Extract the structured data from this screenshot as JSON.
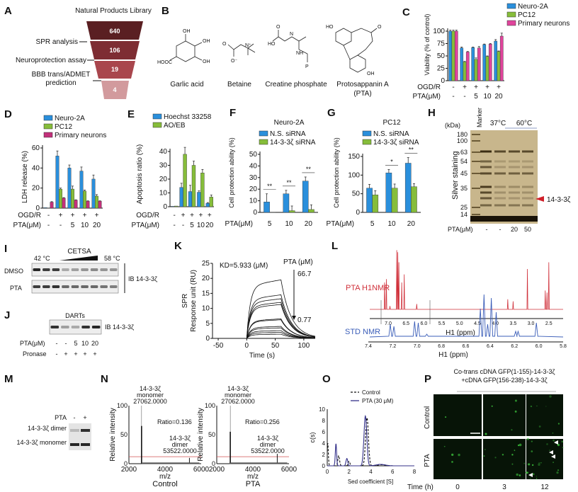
{
  "panels": [
    "A",
    "B",
    "C",
    "D",
    "E",
    "F",
    "G",
    "H",
    "I",
    "J",
    "K",
    "L",
    "M",
    "N",
    "O",
    "P"
  ],
  "A": {
    "title": "Natural Products Library",
    "levels": [
      "640",
      "106",
      "19",
      "4"
    ],
    "level_colors": [
      "#5a1f22",
      "#7e2d33",
      "#a9464d",
      "#d29a9d"
    ],
    "steps": [
      "SPR analysis",
      "Neuroprotection assay",
      "BBB trans/ADMET",
      "prediction"
    ]
  },
  "B": {
    "compounds": [
      "Garlic acid",
      "Betaine",
      "Creatine phosphate",
      "Protosappanin A",
      "(PTA)"
    ],
    "atoms": {
      "oh": "OH",
      "hooc": "HOOC",
      "o": "O",
      "ominus": "O⁻",
      "nplus": "N⁺",
      "ho": "HO",
      "n": "N",
      "nh": "NH",
      "p": "P"
    }
  },
  "H": {
    "kda_label": "(kDa)",
    "marker_label": "Marker",
    "temps": [
      "37°C",
      "60°C"
    ],
    "ylabel": "Silver staining",
    "kda": [
      "180",
      "100",
      "63",
      "54",
      "45",
      "35",
      "25",
      "14"
    ],
    "target": "14-3-3ζ",
    "target_color": "#d0202a",
    "pta_label": "PTA(μM)",
    "pta_values": [
      "-",
      "-",
      "20",
      "50"
    ]
  },
  "I": {
    "temp_start": "42 °C",
    "temp_end": "58 °C",
    "assay": "CETSA",
    "rows": [
      "DMSO",
      "PTA"
    ],
    "ib": "IB 14-3-3ζ",
    "band_intensity": [
      [
        0.9,
        0.8,
        0.8,
        0.3,
        0.35,
        0.4,
        0.45,
        0.4,
        0.4
      ],
      [
        0.8,
        0.8,
        0.85,
        0.6,
        0.6,
        0.6,
        0.6,
        0.55,
        0.5
      ]
    ]
  },
  "J": {
    "assay": "DARTs",
    "ib": "IB 14-3-3ζ",
    "pta_label": "PTA(μM)",
    "pta_values": [
      "-",
      "-",
      "5",
      "10",
      "20"
    ],
    "pronase_label": "Pronase",
    "pronase_values": [
      "-",
      "+",
      "+",
      "+",
      "+"
    ],
    "band_intensity": [
      0.85,
      0.35,
      0.3,
      0.85,
      0.9
    ]
  },
  "L": {
    "pta_label": "PTA H1NMR",
    "std_label": "STD NMR",
    "pta_color": "#d0303a",
    "std_color": "#3a5db8",
    "top_ticks": [
      "7.0",
      "6.5",
      "6.0",
      "5.5",
      "5.0",
      "4.5",
      "4.0",
      "3.5",
      "3.0",
      "2.5"
    ],
    "bottom_ticks": [
      "7.4",
      "7.2",
      "7.0",
      "6.8",
      "6.6",
      "6.4",
      "6.2",
      "6.0",
      "5.8"
    ],
    "xlabel": "H1 (ppm)",
    "pta_peaks": [
      [
        7.1,
        40
      ],
      [
        7.05,
        45
      ],
      [
        6.95,
        5
      ],
      [
        6.76,
        88
      ],
      [
        6.73,
        85
      ],
      [
        6.7,
        70
      ],
      [
        6.62,
        40
      ],
      [
        6.55,
        52
      ],
      [
        6.2,
        8
      ],
      [
        3.65,
        15
      ],
      [
        3.5,
        12
      ],
      [
        3.1,
        60
      ],
      [
        2.6,
        28
      ],
      [
        2.55,
        25
      ],
      [
        2.5,
        70
      ]
    ],
    "std_peaks": [
      [
        7.22,
        18
      ],
      [
        7.19,
        15
      ],
      [
        7.02,
        22
      ],
      [
        6.99,
        20
      ],
      [
        6.92,
        4
      ],
      [
        6.48,
        40
      ],
      [
        6.45,
        60
      ],
      [
        6.42,
        18
      ],
      [
        6.39,
        55
      ],
      [
        6.35,
        35
      ],
      [
        6.19,
        8
      ],
      [
        6.17,
        8
      ],
      [
        6.02,
        20
      ]
    ]
  },
  "M": {
    "pta_label": "PTA",
    "pta_values": [
      "-",
      "+"
    ],
    "rows": [
      "14-3-3ζ dimer",
      "14-3-3ζ monomer"
    ],
    "band_intensity": [
      [
        0.2,
        0.85
      ],
      [
        0.9,
        0.9
      ]
    ]
  },
  "P": {
    "title_line1": "Co-trans cDNA GFP(1-155)-14-3-3ζ",
    "title_line2": "+cDNA GFP(156-238)-14-3-3ζ",
    "rows": [
      "Control",
      "PTA"
    ],
    "time_label": "Time (h)",
    "times": [
      "0",
      "3",
      "12"
    ],
    "green_signal": [
      [
        0.02,
        0.08,
        0.12
      ],
      [
        0.06,
        0.2,
        0.45
      ]
    ]
  },
  "chart_data": {
    "C": {
      "type": "bar",
      "ylabel": "Viability (% of control)",
      "ylim": [
        0,
        100
      ],
      "yticks": [
        "0",
        "25",
        "50",
        "75",
        "100"
      ],
      "rows": [
        {
          "label": "OGD/R",
          "values": [
            "-",
            "+",
            "+",
            "+",
            "+"
          ]
        },
        {
          "label": "PTA(μM)",
          "values": [
            "-",
            "-",
            "5",
            "10",
            "20"
          ]
        }
      ],
      "legend_placement": "top-right",
      "series": [
        {
          "name": "Neuro-2A",
          "color": "#2a8fdc",
          "values": [
            100,
            66,
            67,
            73,
            80
          ],
          "errors": [
            2,
            2,
            1,
            1,
            3
          ]
        },
        {
          "name": "PC12",
          "color": "#86bd3a",
          "values": [
            100,
            38,
            43,
            49,
            59
          ],
          "errors": [
            2,
            1,
            3,
            1,
            1
          ]
        },
        {
          "name": "Primary neurons",
          "color": "#e0449c",
          "values": [
            100,
            58,
            66,
            74,
            90
          ],
          "errors": [
            2,
            1,
            3,
            1,
            6
          ]
        }
      ]
    },
    "D": {
      "type": "bar",
      "ylabel": "LDH release (%)",
      "ylim": [
        0,
        60
      ],
      "yticks": [
        "0",
        "20",
        "40",
        "60"
      ],
      "rows": [
        {
          "label": "OGD/R",
          "values": [
            "-",
            "+",
            "+",
            "+",
            "+"
          ]
        },
        {
          "label": "PTA(μM)",
          "values": [
            "-",
            "-",
            "5",
            "10",
            "20"
          ]
        }
      ],
      "legend_placement": "top-left",
      "series": [
        {
          "name": "Neuro-2A",
          "color": "#2a8fdc",
          "values": [
            0.5,
            52,
            40,
            37,
            29
          ],
          "errors": [
            0,
            5,
            3,
            4,
            4
          ]
        },
        {
          "name": "PC12",
          "color": "#86bd3a",
          "values": [
            0,
            19,
            19,
            17,
            12
          ],
          "errors": [
            0,
            1,
            3,
            1,
            1.5
          ]
        },
        {
          "name": "Primary neurons",
          "color": "#c2307a",
          "values": [
            6,
            10,
            8,
            7,
            7
          ],
          "errors": [
            0.5,
            0.5,
            0.3,
            0.3,
            0.3
          ]
        }
      ]
    },
    "E": {
      "type": "bar",
      "ylabel": "Apoptosis ratio (%)",
      "ylim": [
        0,
        40
      ],
      "yticks": [
        "0",
        "10",
        "20",
        "30",
        "40"
      ],
      "rows": [
        {
          "label": "OGD/R",
          "values": [
            "-",
            "+",
            "+",
            "+",
            "+"
          ]
        },
        {
          "label": "PTA(μM)",
          "values": [
            "-",
            "-",
            "5",
            "10",
            "20"
          ]
        }
      ],
      "legend_placement": "top-left",
      "series": [
        {
          "name": "Hoechst 33258",
          "color": "#2a8fdc",
          "values": [
            0.3,
            14,
            11,
            10.5,
            2.5
          ],
          "errors": [
            0,
            3,
            4.5,
            1,
            0.5
          ]
        },
        {
          "name": "AO/EB",
          "color": "#86bd3a",
          "values": [
            0.5,
            38,
            30,
            24.5,
            7
          ],
          "errors": [
            0,
            5,
            3,
            2.5,
            1.5
          ]
        }
      ]
    },
    "F": {
      "type": "bar",
      "title": "Neuro-2A",
      "ylabel": "Cell protection ability (%)",
      "ylim": [
        0,
        50
      ],
      "yticks": [
        "0",
        "10",
        "20",
        "30",
        "40",
        "50"
      ],
      "rows": [
        {
          "label": "PTA(μM)",
          "values": [
            "5",
            "10",
            "20"
          ]
        }
      ],
      "significance": [
        "**",
        "**",
        "**"
      ],
      "legend_placement": "top",
      "series": [
        {
          "name": "N.S. siRNA",
          "color": "#2a8fdc",
          "values": [
            9,
            16,
            27
          ],
          "errors": [
            7,
            3,
            3.5
          ]
        },
        {
          "name": "14-3-3ζ siRNA",
          "color": "#86bd3a",
          "values": [
            0,
            1.5,
            2.5
          ],
          "errors": [
            0,
            4,
            4
          ]
        }
      ]
    },
    "G": {
      "type": "bar",
      "title": "PC12",
      "ylabel": "Cell protection ability (%)",
      "ylim": [
        0,
        150
      ],
      "yticks": [
        "0",
        "50",
        "100",
        "150"
      ],
      "rows": [
        {
          "label": "PTA(μM)",
          "values": [
            "5",
            "10",
            "20"
          ]
        }
      ],
      "significance": [
        "",
        "*",
        "**"
      ],
      "legend_placement": "top",
      "series": [
        {
          "name": "N.S. siRNA",
          "color": "#2a8fdc",
          "values": [
            65,
            106,
            132
          ],
          "errors": [
            10,
            9,
            15
          ]
        },
        {
          "name": "14-3-3ζ siRNA",
          "color": "#86bd3a",
          "values": [
            47,
            65,
            69
          ],
          "errors": [
            11,
            11,
            8
          ]
        }
      ]
    },
    "K": {
      "type": "line",
      "ylabel_line1": "SPR",
      "ylabel_line2": "Response unit (RU)",
      "xlabel": "Time (s)",
      "xlim": [
        -60,
        120
      ],
      "ylim": [
        0,
        25
      ],
      "xticks": [
        "-50",
        "0",
        "50",
        "100"
      ],
      "yticks": [
        "0",
        "5",
        "10",
        "15",
        "20",
        "25"
      ],
      "kd_label": "KD=5.933 (μM)",
      "conc_label": "PTA (μM)",
      "conc_high": "66.7",
      "conc_low": "0.77",
      "injection_start": 0,
      "injection_end": 60,
      "plateaus": [
        19.5,
        14.5,
        13.2,
        12,
        11.3,
        6.5,
        6.2,
        4,
        3.5,
        2.6,
        2,
        1.4
      ]
    },
    "N": [
      {
        "type": "line",
        "xlabel": "m/z",
        "ylabel": "Relative intensity",
        "title": "Control",
        "xlim": [
          2000,
          6000
        ],
        "ylim": [
          0,
          100
        ],
        "xticks": [
          "2000",
          "4000",
          "6000"
        ],
        "yticks": [
          "0",
          "50",
          "100"
        ],
        "monomer": {
          "label": [
            "14-3-3ζ",
            "monomer",
            "27062.0000"
          ],
          "mz": 2700,
          "intensity": 65
        },
        "dimer": {
          "label": [
            "14-3-3ζ",
            "dimer",
            "53522.0000"
          ],
          "mz": 5350,
          "intensity": 10
        },
        "ratio": "Ratio=0.136",
        "threshold": 12,
        "threshold_color": "#d05050"
      },
      {
        "type": "line",
        "xlabel": "m/z",
        "ylabel": "Relative intensity",
        "title": "PTA",
        "xlim": [
          2000,
          6000
        ],
        "ylim": [
          0,
          100
        ],
        "xticks": [
          "2000",
          "4000",
          "6000"
        ],
        "yticks": [
          "0",
          "50",
          "100"
        ],
        "monomer": {
          "label": [
            "14-3-3ζ",
            "monomer",
            "27062.0000"
          ],
          "mz": 2750,
          "intensity": 55
        },
        "dimer": {
          "label": [
            "14-3-3ζ",
            "dimer",
            "53522.0000"
          ],
          "mz": 5350,
          "intensity": 17
        },
        "ratio": "Ratio=0.256",
        "threshold": 12,
        "threshold_color": "#d05050"
      }
    ],
    "O": {
      "type": "line",
      "ylabel": "c(s)",
      "xlabel": "Sed coefficient [S]",
      "xlim": [
        0,
        8
      ],
      "ylim": [
        0,
        10
      ],
      "xticks": [
        "0",
        "2",
        "4",
        "6",
        "8"
      ],
      "yticks": [
        "0",
        "2",
        "4",
        "6",
        "8",
        "10"
      ],
      "series": [
        {
          "name": "Control",
          "style": "dashed",
          "color": "#111",
          "peaks": [
            [
              0.05,
              4,
              0.05
            ],
            [
              1.05,
              1.8,
              0.08
            ],
            [
              2.0,
              0.8,
              0.08
            ],
            [
              3.65,
              8.5,
              0.13
            ],
            [
              5,
              0.2,
              0.4
            ]
          ]
        },
        {
          "name": "PTA (30 μM)",
          "style": "solid",
          "color": "#34318a",
          "peaks": [
            [
              0.8,
              3.9,
              0.06
            ],
            [
              1.8,
              1.3,
              0.08
            ],
            [
              3.5,
              8.8,
              0.13
            ],
            [
              4.9,
              0.25,
              0.4
            ]
          ]
        }
      ]
    }
  }
}
